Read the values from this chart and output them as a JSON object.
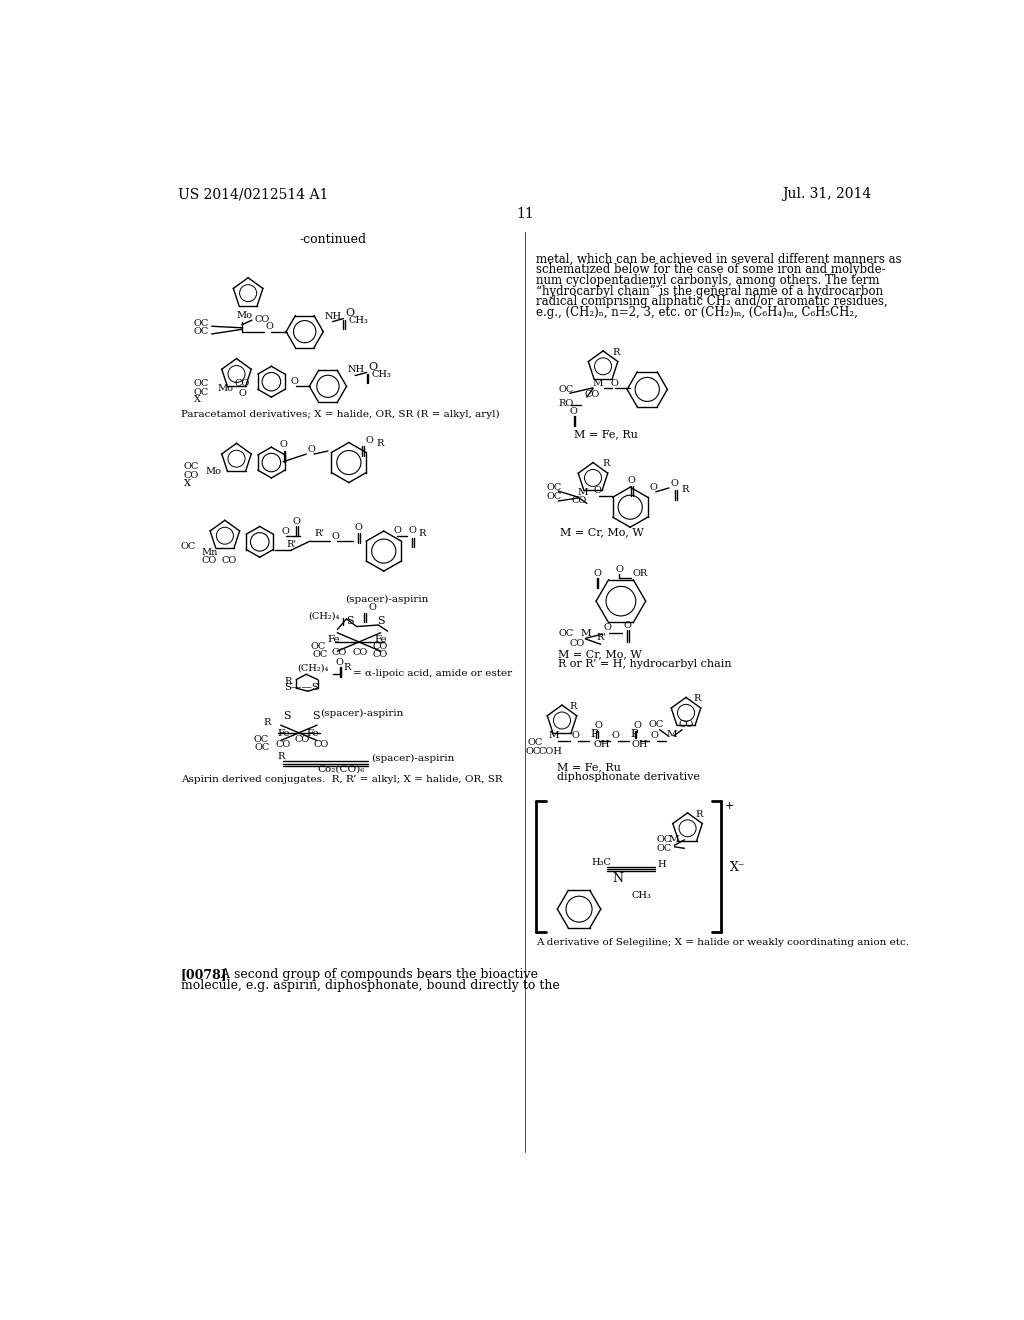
{
  "page_width": 10.24,
  "page_height": 13.2,
  "bg_color": "#ffffff",
  "header_left": "US 2014/0212514 A1",
  "header_right": "Jul. 31, 2014",
  "page_number": "11",
  "continued_label": "-continued",
  "right_text": [
    "metal, which can be achieved in several different manners as",
    "schematized below for the case of some iron and molybde-",
    "num cyclopentadienyl carbonyls, among others. The term",
    "“hydrocarbyl chain” is the general name of a hydrocarbon",
    "radical comprising aliphatic CH₂ and/or aromatic residues,",
    "e.g., (CH₂)ₙ, n=2, 3, etc. or (CH₂)ₘ, (C₆H₄)ₘ, C₆H₅CH₂,"
  ],
  "caption_paracetamol": "Paracetamol derivatives; X = halide, OR, SR (R = alkyl, aryl)",
  "caption_m_fe_ru_1": "M = Fe, Ru",
  "caption_m_cr_mo_w_1": "M = Cr, Mo, W",
  "caption_m_cr_mo_w_2": "M = Cr, Mo, W",
  "caption_hydrocarbyl": "R or R’ = H, hydrocarbyl chain",
  "caption_m_fe_ru_2": "M = Fe, Ru",
  "caption_diphosphonate": "diphosphonate derivative",
  "caption_aspirin": "Aspirin derived conjugates.  R, R’ = alkyl; X = halide, OR, SR",
  "caption_selegiline": "A derivative of Selegiline; X = halide or weakly coordinating anion etc.",
  "para_ref": "[0078]",
  "para_text1": "   A second group of compounds bears the bioactive",
  "para_text2": "molecule, e.g. aspirin, diphosphonate, bound directly to the"
}
